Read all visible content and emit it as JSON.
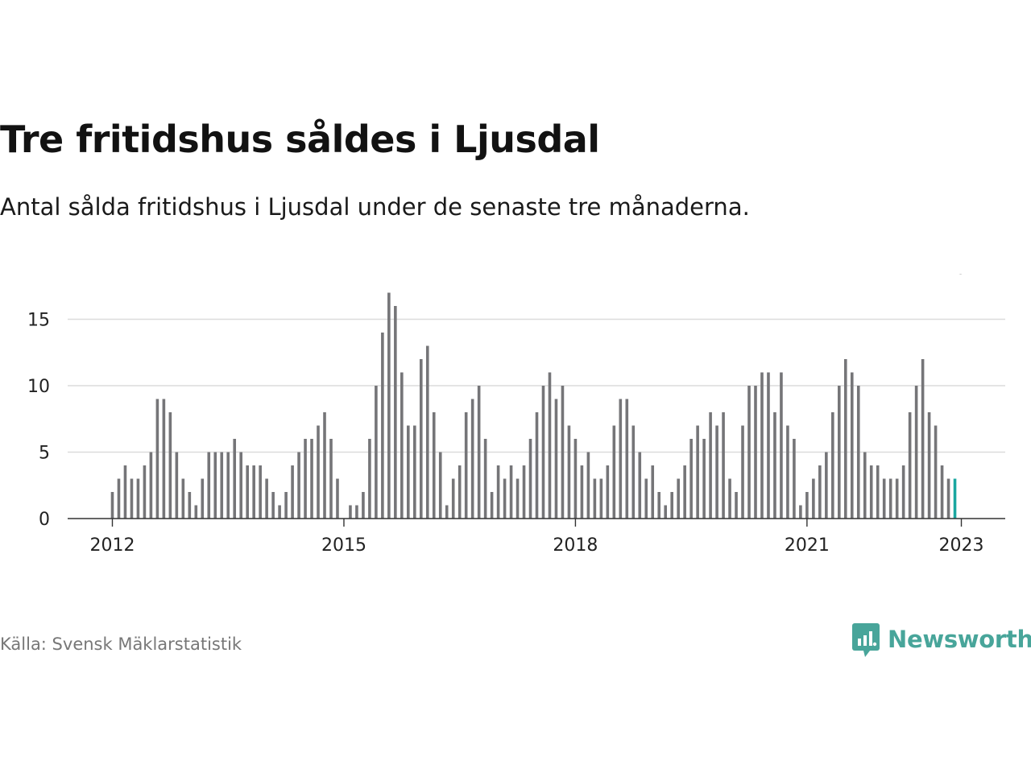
{
  "title": "Tre fritidshus såldes i Ljusdal",
  "subtitle": "Antal sålda fritidshus i Ljusdal under de senaste tre månaderna.",
  "source": "Källa: Svensk Mäklarstatistik",
  "brand": {
    "name": "Newsworthy",
    "icon": "newsworthy-logo-icon",
    "color": "#48a59a"
  },
  "colors": {
    "bar": "#757578",
    "highlight": "#1aa7a0",
    "grid": "#dcdcdc",
    "axis": "#333333"
  },
  "chart_data": {
    "type": "bar",
    "xlabel": "",
    "ylabel": "",
    "ylim": [
      0,
      17
    ],
    "yticks": [
      0,
      5,
      10,
      15
    ],
    "xticks": [
      {
        "label": "2012",
        "index": 0
      },
      {
        "label": "2015",
        "index": 36
      },
      {
        "label": "2018",
        "index": 72
      },
      {
        "label": "2021",
        "index": 108
      },
      {
        "label": "2023",
        "index": 132
      }
    ],
    "start": "2012-01",
    "frequency": "monthly",
    "values": [
      2,
      3,
      4,
      3,
      3,
      4,
      5,
      9,
      9,
      8,
      5,
      3,
      2,
      1,
      3,
      5,
      5,
      5,
      5,
      6,
      5,
      4,
      4,
      4,
      3,
      2,
      1,
      2,
      4,
      5,
      6,
      6,
      7,
      8,
      6,
      3,
      0,
      1,
      1,
      2,
      6,
      10,
      14,
      17,
      16,
      11,
      7,
      7,
      12,
      13,
      8,
      5,
      1,
      3,
      4,
      8,
      9,
      10,
      6,
      2,
      4,
      3,
      4,
      3,
      4,
      6,
      8,
      10,
      11,
      9,
      10,
      7,
      6,
      4,
      5,
      3,
      3,
      4,
      7,
      9,
      9,
      7,
      5,
      3,
      4,
      2,
      1,
      2,
      3,
      4,
      6,
      7,
      6,
      8,
      7,
      8,
      3,
      2,
      7,
      10,
      10,
      11,
      11,
      8,
      11,
      7,
      6,
      1,
      2,
      3,
      4,
      5,
      8,
      10,
      12,
      11,
      10,
      5,
      4,
      4,
      3,
      3,
      3,
      4,
      8,
      10,
      12,
      8,
      7,
      4,
      3,
      3
    ],
    "annotation": {
      "index": 132,
      "label": "3"
    }
  }
}
